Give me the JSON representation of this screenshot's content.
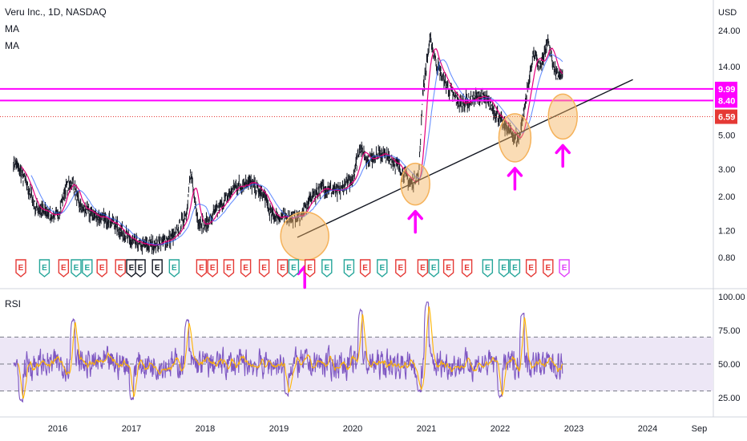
{
  "legend": {
    "symbol": "Veru Inc., 1D, NASDAQ",
    "ma1": "MA",
    "ma2": "MA",
    "rsi": "RSI"
  },
  "colors": {
    "candle": "#131722",
    "ma_fast": "#e5007d",
    "ma_slow": "#2962ff",
    "resistance": "#ff00ff",
    "current_price": "#e53935",
    "trendline": "#131722",
    "circle_fill": "#f5b25a",
    "arrow": "#ff00ff",
    "earn_red": "#e53935",
    "earn_green": "#26a69a",
    "earn_black": "#131722",
    "earn_future": "#e040fb",
    "rsi_line": "#7e57c2",
    "rsi_ma": "#ffb300",
    "rsi_band": "#ede7f6"
  },
  "chart_data": [
    {
      "type": "line",
      "scale": "log",
      "currency_label": "USD",
      "y_ticks": [
        0.8,
        1.2,
        2.0,
        3.0,
        5.0,
        14.0,
        24.0
      ],
      "y_tick_labels": [
        "0.80",
        "1.20",
        "2.00",
        "3.00",
        "5.00",
        "14.00",
        "24.00"
      ],
      "x_labels": [
        "2016",
        "2017",
        "2018",
        "2019",
        "2020",
        "2021",
        "2022",
        "2023",
        "2024",
        "Sep"
      ],
      "price_path": [
        [
          2015.4,
          3.4
        ],
        [
          2015.55,
          2.6
        ],
        [
          2015.7,
          1.7
        ],
        [
          2015.85,
          1.55
        ],
        [
          2016.0,
          1.5
        ],
        [
          2016.1,
          2.2
        ],
        [
          2016.2,
          2.5
        ],
        [
          2016.3,
          1.7
        ],
        [
          2016.5,
          1.5
        ],
        [
          2016.7,
          1.4
        ],
        [
          2016.9,
          1.15
        ],
        [
          2017.0,
          1.0
        ],
        [
          2017.2,
          0.95
        ],
        [
          2017.4,
          1.0
        ],
        [
          2017.6,
          1.1
        ],
        [
          2017.75,
          1.6
        ],
        [
          2017.8,
          2.8
        ],
        [
          2017.9,
          1.4
        ],
        [
          2018.0,
          1.3
        ],
        [
          2018.2,
          1.7
        ],
        [
          2018.4,
          2.3
        ],
        [
          2018.6,
          2.5
        ],
        [
          2018.8,
          2.0
        ],
        [
          2018.9,
          1.5
        ],
        [
          2019.1,
          1.45
        ],
        [
          2019.3,
          1.5
        ],
        [
          2019.45,
          2.0
        ],
        [
          2019.6,
          2.3
        ],
        [
          2019.8,
          2.1
        ],
        [
          2020.0,
          2.6
        ],
        [
          2020.1,
          4.2
        ],
        [
          2020.2,
          3.5
        ],
        [
          2020.4,
          3.8
        ],
        [
          2020.6,
          3.2
        ],
        [
          2020.8,
          2.4
        ],
        [
          2020.9,
          2.8
        ],
        [
          2020.95,
          9.5
        ],
        [
          2021.05,
          21.0
        ],
        [
          2021.15,
          14.0
        ],
        [
          2021.3,
          10.0
        ],
        [
          2021.45,
          8.0
        ],
        [
          2021.6,
          8.5
        ],
        [
          2021.75,
          9.0
        ],
        [
          2021.9,
          7.5
        ],
        [
          2022.05,
          5.8
        ],
        [
          2022.25,
          4.6
        ],
        [
          2022.35,
          8.5
        ],
        [
          2022.45,
          17.0
        ],
        [
          2022.55,
          14.0
        ],
        [
          2022.65,
          20.0
        ],
        [
          2022.75,
          13.0
        ],
        [
          2022.85,
          12.0
        ]
      ],
      "resistance_levels": [
        9.99,
        8.4
      ],
      "resistance_labels": [
        "9.99",
        "8.40"
      ],
      "current_price": 6.59,
      "current_price_label": "6.59",
      "trendline": [
        [
          2019.25,
          1.08
        ],
        [
          2023.8,
          11.5
        ]
      ],
      "highlight_points": [
        [
          2019.35,
          1.1
        ],
        [
          2020.85,
          2.4
        ],
        [
          2022.2,
          4.8
        ],
        [
          2022.85,
          6.6
        ]
      ],
      "earnings_markers": [
        [
          2015.5,
          "red"
        ],
        [
          2015.82,
          "green"
        ],
        [
          2016.08,
          "red"
        ],
        [
          2016.25,
          "green"
        ],
        [
          2016.4,
          "green"
        ],
        [
          2016.6,
          "red"
        ],
        [
          2016.85,
          "red"
        ],
        [
          2017.0,
          "black"
        ],
        [
          2017.12,
          "black"
        ],
        [
          2017.35,
          "black"
        ],
        [
          2017.58,
          "green"
        ],
        [
          2017.95,
          "red"
        ],
        [
          2018.1,
          "red"
        ],
        [
          2018.32,
          "red"
        ],
        [
          2018.55,
          "red"
        ],
        [
          2018.8,
          "red"
        ],
        [
          2019.05,
          "red"
        ],
        [
          2019.2,
          "green"
        ],
        [
          2019.42,
          "red"
        ],
        [
          2019.65,
          "green"
        ],
        [
          2019.95,
          "green"
        ],
        [
          2020.17,
          "red"
        ],
        [
          2020.4,
          "green"
        ],
        [
          2020.65,
          "red"
        ],
        [
          2020.95,
          "red"
        ],
        [
          2021.1,
          "green"
        ],
        [
          2021.3,
          "red"
        ],
        [
          2021.55,
          "red"
        ],
        [
          2021.83,
          "green"
        ],
        [
          2022.05,
          "green"
        ],
        [
          2022.2,
          "green"
        ],
        [
          2022.42,
          "red"
        ],
        [
          2022.65,
          "red"
        ],
        [
          2022.87,
          "future"
        ]
      ]
    },
    {
      "type": "line",
      "name": "RSI",
      "ylim": [
        20,
        100
      ],
      "y_ticks": [
        25,
        50,
        75,
        100
      ],
      "y_tick_labels": [
        "25.00",
        "50.00",
        "75.00",
        "100.00"
      ],
      "band": [
        30,
        70
      ],
      "peaks": [
        [
          2016.2,
          83
        ],
        [
          2017.75,
          82
        ],
        [
          2020.1,
          90
        ],
        [
          2021.0,
          96
        ],
        [
          2022.3,
          88
        ]
      ],
      "troughs": [
        [
          2015.5,
          22
        ],
        [
          2017.0,
          24
        ],
        [
          2019.1,
          27
        ],
        [
          2020.9,
          30
        ],
        [
          2022.0,
          26
        ]
      ]
    }
  ],
  "earn_letter": "E"
}
